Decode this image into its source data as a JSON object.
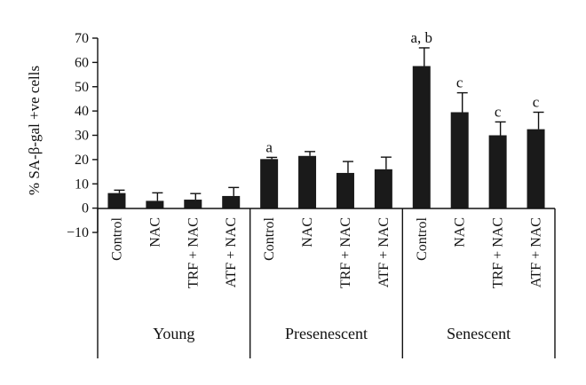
{
  "chart_data": {
    "type": "bar",
    "ylabel": "% SA-β-gal +ve cells",
    "ylim": [
      -10,
      70
    ],
    "yticks": [
      -10,
      0,
      10,
      20,
      30,
      40,
      50,
      60,
      70
    ],
    "grid": false,
    "bar_color": "#1a1a1a",
    "groups": [
      {
        "name": "Young",
        "bars": [
          {
            "category": "Control",
            "value": 6.2,
            "error": 1.2,
            "annotation": ""
          },
          {
            "category": "NAC",
            "value": 3.0,
            "error": 3.3,
            "annotation": ""
          },
          {
            "category": "TRF + NAC",
            "value": 3.5,
            "error": 2.5,
            "annotation": ""
          },
          {
            "category": "ATF + NAC",
            "value": 5.0,
            "error": 3.5,
            "annotation": ""
          }
        ]
      },
      {
        "name": "Presenescent",
        "bars": [
          {
            "category": "Control",
            "value": 20.2,
            "error": 0.7,
            "annotation": "a"
          },
          {
            "category": "NAC",
            "value": 21.5,
            "error": 1.8,
            "annotation": ""
          },
          {
            "category": "TRF + NAC",
            "value": 14.5,
            "error": 4.7,
            "annotation": ""
          },
          {
            "category": "ATF + NAC",
            "value": 16.0,
            "error": 5.0,
            "annotation": ""
          }
        ]
      },
      {
        "name": "Senescent",
        "bars": [
          {
            "category": "Control",
            "value": 58.5,
            "error": 7.5,
            "annotation": "a, b"
          },
          {
            "category": "NAC",
            "value": 39.5,
            "error": 8.0,
            "annotation": "c"
          },
          {
            "category": "TRF + NAC",
            "value": 30.0,
            "error": 5.5,
            "annotation": "c"
          },
          {
            "category": "ATF + NAC",
            "value": 32.5,
            "error": 7.0,
            "annotation": "c"
          }
        ]
      }
    ]
  }
}
